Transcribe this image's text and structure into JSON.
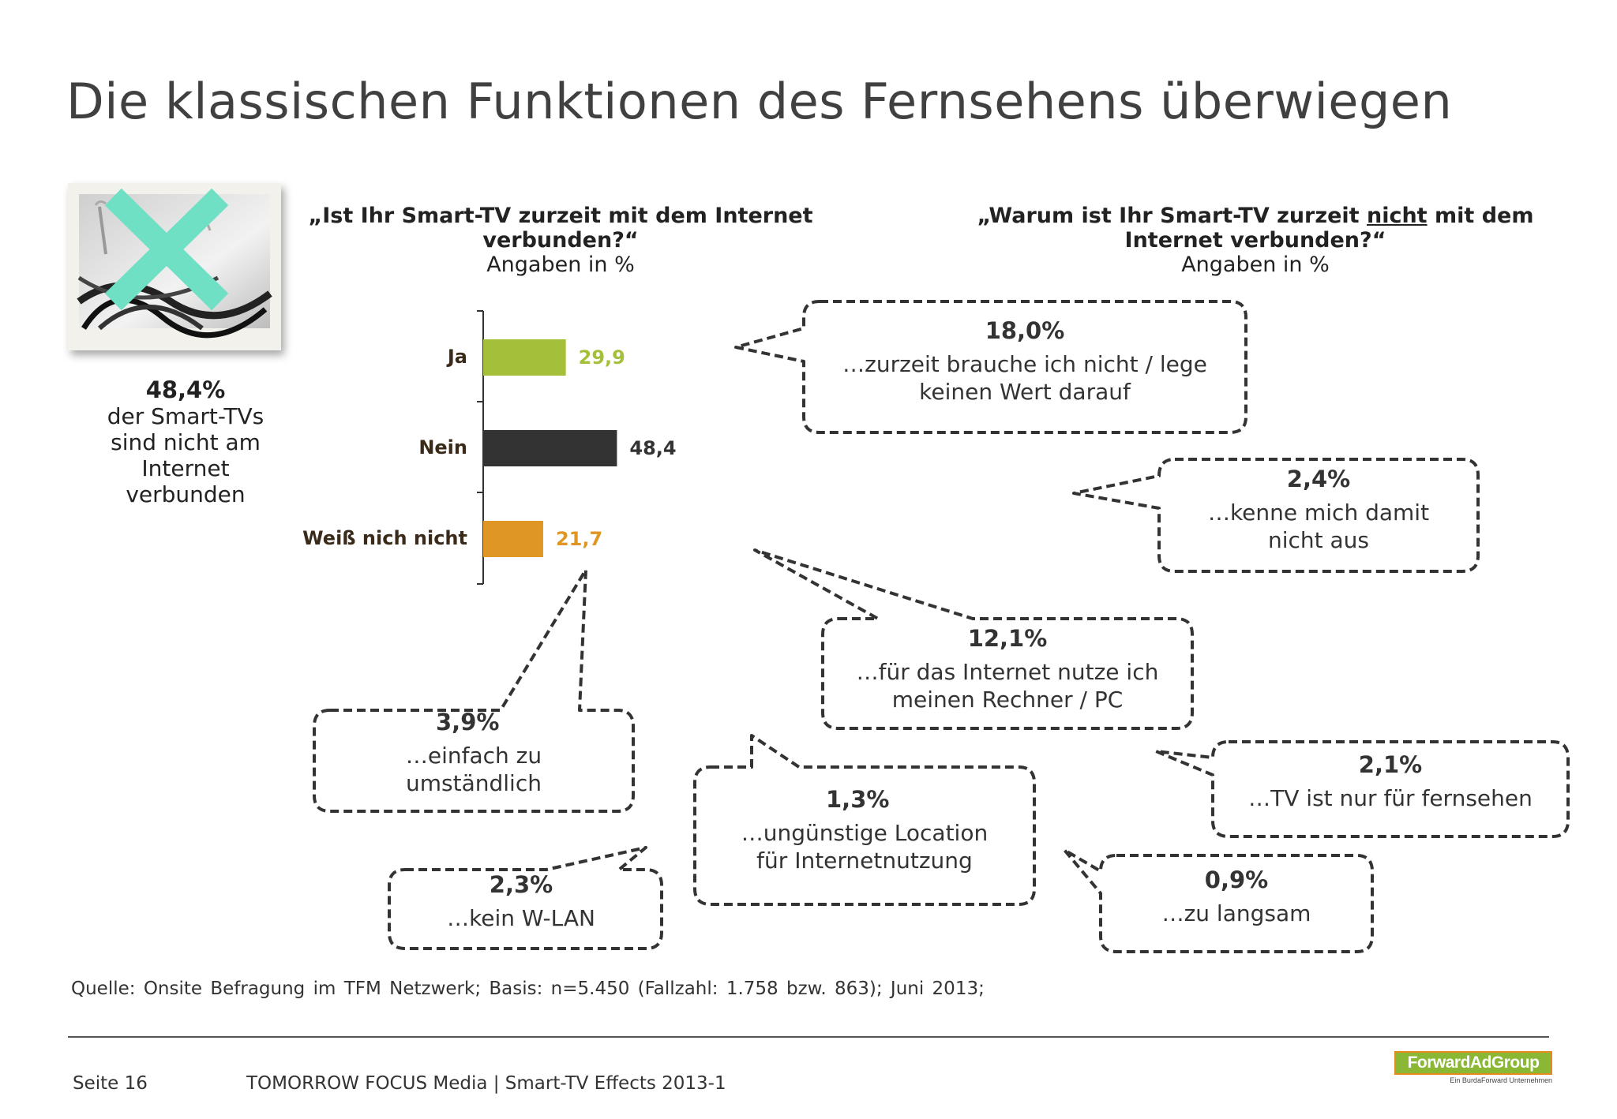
{
  "title": "Die klassischen Funktionen des Fernsehens überwiegen",
  "question1": {
    "line1": "„Ist Ihr Smart-TV zurzeit mit dem Internet",
    "line2": "verbunden?“",
    "sub": "Angaben in %"
  },
  "question2": {
    "line1_pre": "„Warum ist Ihr Smart-TV zurzeit ",
    "line1_ul": "nicht",
    "line1_post": " mit dem",
    "line2": "Internet verbunden?“",
    "sub": "Angaben in %"
  },
  "left_stat": {
    "pct": "48,4%",
    "line1": "der Smart-TVs",
    "line2": "sind nicht am",
    "line3": "Internet",
    "line4": "verbunden"
  },
  "colors": {
    "ja": "#a4c03a",
    "nein": "#333333",
    "weiss": "#df9624",
    "x_mark": "#6fe0c4"
  },
  "chart_data": {
    "type": "bar",
    "orientation": "horizontal",
    "categories": [
      "Ja",
      "Nein",
      "Weiß nich nicht"
    ],
    "values": [
      29.9,
      48.4,
      21.7
    ],
    "value_labels": [
      "29,9",
      "48,4",
      "21,7"
    ],
    "xlim": [
      0,
      100
    ]
  },
  "bubbles": [
    {
      "id": "b1",
      "pct": "18,0%",
      "lines": [
        "…zurzeit brauche ich nicht / lege",
        "keinen Wert darauf"
      ]
    },
    {
      "id": "b2",
      "pct": "2,4%",
      "lines": [
        "…kenne mich damit",
        "nicht aus"
      ]
    },
    {
      "id": "b3",
      "pct": "12,1%",
      "lines": [
        "…für das Internet nutze ich",
        "meinen Rechner / PC"
      ]
    },
    {
      "id": "b4",
      "pct": "3,9%",
      "lines": [
        "…einfach zu",
        "umständlich"
      ]
    },
    {
      "id": "b5",
      "pct": "1,3%",
      "lines": [
        "…ungünstige Location",
        "für Internetnutzung"
      ]
    },
    {
      "id": "b6",
      "pct": "2,1%",
      "lines": [
        "…TV ist nur für fernsehen"
      ]
    },
    {
      "id": "b7",
      "pct": "2,3%",
      "lines": [
        "…kein W-LAN"
      ]
    },
    {
      "id": "b8",
      "pct": "0,9%",
      "lines": [
        "…zu langsam"
      ]
    }
  ],
  "source": "Quelle: Onsite Befragung im TFM Netzwerk; Basis: n=5.450 (Fallzahl: 1.758 bzw. 863); Juni 2013;",
  "footer": {
    "page": "Seite 16",
    "text": "TOMORROW FOCUS Media  |  Smart-TV Effects 2013-1"
  },
  "logo": {
    "name": "ForwardAdGroup",
    "tagline": "Ein BurdaForward Unternehmen"
  }
}
